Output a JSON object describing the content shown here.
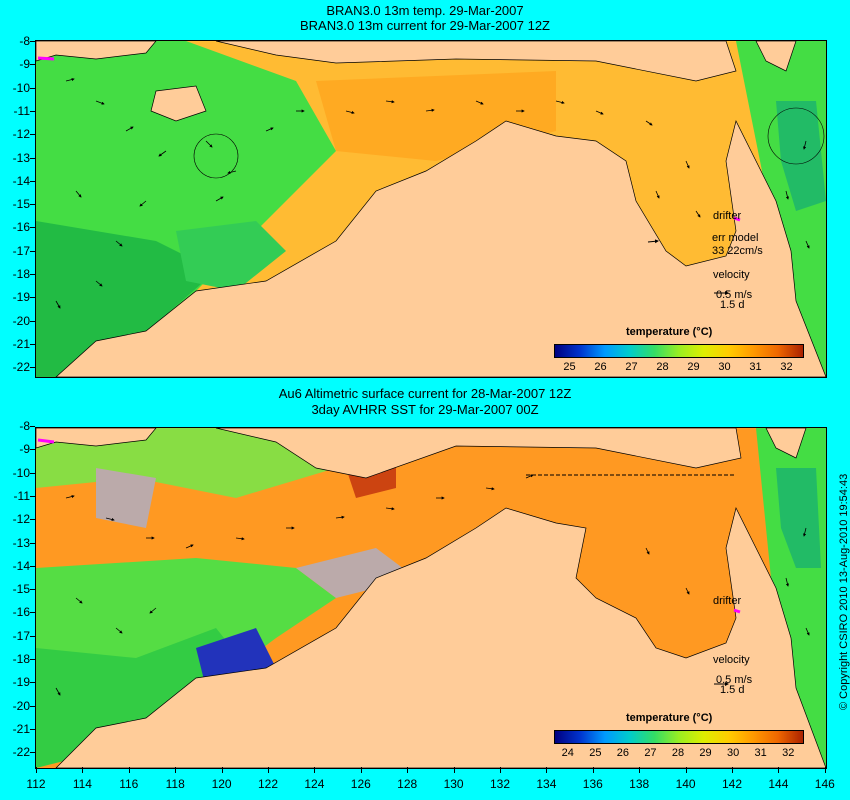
{
  "top_panel": {
    "title_line1": "BRAN3.0 13m temp. 29-Mar-2007",
    "title_line2": "BRAN3.0 13m current for 29-Mar-2007 12Z",
    "drifter_label": "drifter",
    "err_model_label": "err model",
    "err_model_value": "33 22cm/s",
    "velocity_label": "velocity",
    "velocity_scale": "0.5 m/s",
    "velocity_time": "1.5 d",
    "colorbar_title": "temperature (°C)",
    "colorbar_ticks": [
      "25",
      "26",
      "27",
      "28",
      "29",
      "30",
      "31",
      "32"
    ]
  },
  "bottom_panel": {
    "title_line1": "Au6 Altimetric surface current for 28-Mar-2007 12Z",
    "title_line2": "3day AVHRR SST for 29-Mar-2007 00Z",
    "drifter_label": "drifter",
    "velocity_label": "velocity",
    "velocity_scale": "0.5 m/s",
    "velocity_time": "1.5 d",
    "colorbar_title": "temperature (°C)",
    "colorbar_ticks": [
      "24",
      "25",
      "26",
      "27",
      "28",
      "29",
      "30",
      "31",
      "32"
    ]
  },
  "lat_labels": [
    "-8",
    "-9",
    "-10",
    "-11",
    "-12",
    "-13",
    "-14",
    "-15",
    "-16",
    "-17",
    "-18",
    "-19",
    "-20",
    "-21",
    "-22"
  ],
  "lon_labels": [
    "112",
    "114",
    "116",
    "118",
    "120",
    "122",
    "124",
    "126",
    "128",
    "130",
    "132",
    "134",
    "136",
    "138",
    "140",
    "142",
    "144",
    "146"
  ],
  "copyright": "© Copyright CSIRO 2010  13-Aug-2010 19:54:43",
  "colors": {
    "background": "#00ffff",
    "land": "#ffcc99",
    "drifter": "#ff00ff"
  }
}
